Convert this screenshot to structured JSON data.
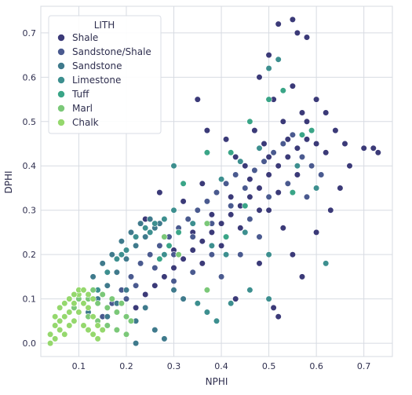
{
  "chart_data": {
    "type": "scatter",
    "xlabel": "NPHI",
    "ylabel": "DPHI",
    "xlim": [
      0.02,
      0.76
    ],
    "ylim": [
      -0.03,
      0.76
    ],
    "xticks": [
      "0.1",
      "0.2",
      "0.3",
      "0.4",
      "0.5",
      "0.6",
      "0.7"
    ],
    "xtick_values": [
      0.1,
      0.2,
      0.3,
      0.4,
      0.5,
      0.6,
      0.7
    ],
    "yticks": [
      "0.0",
      "0.1",
      "0.2",
      "0.3",
      "0.4",
      "0.5",
      "0.6",
      "0.7"
    ],
    "ytick_values": [
      0.0,
      0.1,
      0.2,
      0.3,
      0.4,
      0.5,
      0.6,
      0.7
    ],
    "grid": true,
    "legend": {
      "title": "LITH",
      "placement": "top-left"
    },
    "series": [
      {
        "name": "Shale",
        "color": "#3b3a78",
        "points": [
          [
            0.18,
            0.03
          ],
          [
            0.2,
            0.06
          ],
          [
            0.22,
            0.08
          ],
          [
            0.24,
            0.11
          ],
          [
            0.26,
            0.13
          ],
          [
            0.28,
            0.15
          ],
          [
            0.3,
            0.17
          ],
          [
            0.32,
            0.19
          ],
          [
            0.34,
            0.21
          ],
          [
            0.36,
            0.23
          ],
          [
            0.38,
            0.25
          ],
          [
            0.4,
            0.27
          ],
          [
            0.42,
            0.29
          ],
          [
            0.44,
            0.31
          ],
          [
            0.46,
            0.33
          ],
          [
            0.48,
            0.35
          ],
          [
            0.5,
            0.38
          ],
          [
            0.52,
            0.4
          ],
          [
            0.54,
            0.42
          ],
          [
            0.56,
            0.44
          ],
          [
            0.58,
            0.46
          ],
          [
            0.6,
            0.45
          ],
          [
            0.62,
            0.43
          ],
          [
            0.3,
            0.21
          ],
          [
            0.34,
            0.25
          ],
          [
            0.38,
            0.29
          ],
          [
            0.42,
            0.33
          ],
          [
            0.46,
            0.37
          ],
          [
            0.5,
            0.42
          ],
          [
            0.54,
            0.46
          ],
          [
            0.58,
            0.5
          ],
          [
            0.36,
            0.18
          ],
          [
            0.4,
            0.22
          ],
          [
            0.44,
            0.26
          ],
          [
            0.48,
            0.3
          ],
          [
            0.52,
            0.34
          ],
          [
            0.56,
            0.38
          ],
          [
            0.45,
            0.4
          ],
          [
            0.49,
            0.45
          ],
          [
            0.53,
            0.5
          ],
          [
            0.57,
            0.52
          ],
          [
            0.47,
            0.48
          ],
          [
            0.51,
            0.55
          ],
          [
            0.55,
            0.58
          ],
          [
            0.6,
            0.55
          ],
          [
            0.62,
            0.52
          ],
          [
            0.64,
            0.48
          ],
          [
            0.66,
            0.45
          ],
          [
            0.7,
            0.44
          ],
          [
            0.72,
            0.44
          ],
          [
            0.73,
            0.43
          ],
          [
            0.52,
            0.72
          ],
          [
            0.55,
            0.73
          ],
          [
            0.56,
            0.7
          ],
          [
            0.58,
            0.69
          ],
          [
            0.5,
            0.65
          ],
          [
            0.48,
            0.6
          ],
          [
            0.35,
            0.55
          ],
          [
            0.37,
            0.48
          ],
          [
            0.41,
            0.46
          ],
          [
            0.27,
            0.34
          ],
          [
            0.24,
            0.28
          ],
          [
            0.32,
            0.32
          ],
          [
            0.28,
            0.24
          ],
          [
            0.36,
            0.36
          ],
          [
            0.43,
            0.42
          ],
          [
            0.5,
            0.3
          ],
          [
            0.53,
            0.26
          ],
          [
            0.55,
            0.2
          ],
          [
            0.57,
            0.15
          ],
          [
            0.51,
            0.08
          ],
          [
            0.52,
            0.06
          ],
          [
            0.43,
            0.1
          ],
          [
            0.48,
            0.18
          ],
          [
            0.6,
            0.25
          ],
          [
            0.63,
            0.3
          ],
          [
            0.65,
            0.35
          ],
          [
            0.67,
            0.4
          ]
        ]
      },
      {
        "name": "Sandstone/Shale",
        "color": "#4a5a8f",
        "points": [
          [
            0.15,
            0.06
          ],
          [
            0.17,
            0.09
          ],
          [
            0.19,
            0.12
          ],
          [
            0.21,
            0.15
          ],
          [
            0.23,
            0.18
          ],
          [
            0.25,
            0.2
          ],
          [
            0.27,
            0.22
          ],
          [
            0.29,
            0.24
          ],
          [
            0.31,
            0.26
          ],
          [
            0.33,
            0.28
          ],
          [
            0.35,
            0.3
          ],
          [
            0.37,
            0.32
          ],
          [
            0.39,
            0.34
          ],
          [
            0.41,
            0.36
          ],
          [
            0.43,
            0.38
          ],
          [
            0.45,
            0.35
          ],
          [
            0.47,
            0.39
          ],
          [
            0.49,
            0.41
          ],
          [
            0.51,
            0.43
          ],
          [
            0.53,
            0.45
          ],
          [
            0.55,
            0.47
          ],
          [
            0.57,
            0.42
          ],
          [
            0.59,
            0.4
          ],
          [
            0.61,
            0.38
          ],
          [
            0.2,
            0.1
          ],
          [
            0.22,
            0.13
          ],
          [
            0.26,
            0.17
          ],
          [
            0.3,
            0.2
          ],
          [
            0.34,
            0.24
          ],
          [
            0.38,
            0.27
          ],
          [
            0.42,
            0.31
          ],
          [
            0.46,
            0.28
          ],
          [
            0.5,
            0.33
          ],
          [
            0.54,
            0.36
          ],
          [
            0.58,
            0.33
          ],
          [
            0.3,
            0.14
          ],
          [
            0.34,
            0.16
          ],
          [
            0.38,
            0.2
          ],
          [
            0.4,
            0.15
          ],
          [
            0.44,
            0.2
          ],
          [
            0.48,
            0.24
          ]
        ]
      },
      {
        "name": "Sandstone",
        "color": "#3f7a8c",
        "points": [
          [
            0.12,
            0.07
          ],
          [
            0.14,
            0.1
          ],
          [
            0.16,
            0.13
          ],
          [
            0.18,
            0.16
          ],
          [
            0.2,
            0.19
          ],
          [
            0.22,
            0.22
          ],
          [
            0.24,
            0.24
          ],
          [
            0.26,
            0.26
          ],
          [
            0.13,
            0.15
          ],
          [
            0.15,
            0.18
          ],
          [
            0.17,
            0.2
          ],
          [
            0.19,
            0.23
          ],
          [
            0.21,
            0.25
          ],
          [
            0.23,
            0.27
          ],
          [
            0.25,
            0.28
          ],
          [
            0.27,
            0.27
          ],
          [
            0.16,
            0.06
          ],
          [
            0.18,
            0.09
          ],
          [
            0.2,
            0.12
          ],
          [
            0.22,
            0.05
          ],
          [
            0.24,
            0.08
          ],
          [
            0.26,
            0.03
          ],
          [
            0.28,
            0.01
          ],
          [
            0.22,
            0.0
          ],
          [
            0.3,
            0.12
          ],
          [
            0.32,
            0.1
          ]
        ]
      },
      {
        "name": "Limestone",
        "color": "#3d8f8f",
        "points": [
          [
            0.14,
            0.12
          ],
          [
            0.16,
            0.16
          ],
          [
            0.18,
            0.19
          ],
          [
            0.2,
            0.21
          ],
          [
            0.22,
            0.24
          ],
          [
            0.24,
            0.26
          ],
          [
            0.26,
            0.27
          ],
          [
            0.28,
            0.28
          ],
          [
            0.3,
            0.3
          ],
          [
            0.4,
            0.37
          ],
          [
            0.44,
            0.41
          ],
          [
            0.48,
            0.44
          ],
          [
            0.5,
            0.62
          ],
          [
            0.52,
            0.64
          ],
          [
            0.3,
            0.4
          ],
          [
            0.34,
            0.27
          ],
          [
            0.38,
            0.22
          ],
          [
            0.56,
            0.4
          ],
          [
            0.6,
            0.35
          ],
          [
            0.62,
            0.18
          ],
          [
            0.5,
            0.2
          ],
          [
            0.46,
            0.12
          ],
          [
            0.42,
            0.09
          ],
          [
            0.35,
            0.09
          ],
          [
            0.37,
            0.07
          ],
          [
            0.39,
            0.05
          ],
          [
            0.5,
            0.1
          ],
          [
            0.45,
            0.25
          ],
          [
            0.41,
            0.2
          ],
          [
            0.28,
            0.2
          ],
          [
            0.19,
            0.2
          ],
          [
            0.25,
            0.25
          ]
        ]
      },
      {
        "name": "Tuff",
        "color": "#3aa587",
        "points": [
          [
            0.42,
            0.43
          ],
          [
            0.46,
            0.5
          ],
          [
            0.5,
            0.55
          ],
          [
            0.53,
            0.57
          ],
          [
            0.57,
            0.47
          ],
          [
            0.27,
            0.19
          ],
          [
            0.29,
            0.22
          ],
          [
            0.31,
            0.25
          ],
          [
            0.41,
            0.24
          ],
          [
            0.32,
            0.36
          ],
          [
            0.45,
            0.31
          ],
          [
            0.55,
            0.34
          ],
          [
            0.59,
            0.48
          ],
          [
            0.37,
            0.43
          ]
        ]
      },
      {
        "name": "Marl",
        "color": "#7bc878",
        "points": [
          [
            0.09,
            0.08
          ],
          [
            0.1,
            0.1
          ],
          [
            0.11,
            0.12
          ],
          [
            0.12,
            0.1
          ],
          [
            0.13,
            0.12
          ],
          [
            0.14,
            0.09
          ],
          [
            0.15,
            0.11
          ],
          [
            0.16,
            0.08
          ],
          [
            0.17,
            0.1
          ],
          [
            0.18,
            0.07
          ],
          [
            0.19,
            0.09
          ],
          [
            0.2,
            0.06
          ],
          [
            0.21,
            0.05
          ],
          [
            0.12,
            0.06
          ],
          [
            0.14,
            0.05
          ],
          [
            0.16,
            0.04
          ],
          [
            0.18,
            0.03
          ],
          [
            0.2,
            0.02
          ],
          [
            0.37,
            0.12
          ],
          [
            0.28,
            0.24
          ],
          [
            0.31,
            0.2
          ],
          [
            0.37,
            0.27
          ]
        ]
      },
      {
        "name": "Chalk",
        "color": "#95d86d",
        "points": [
          [
            0.04,
            0.0
          ],
          [
            0.04,
            0.02
          ],
          [
            0.05,
            0.04
          ],
          [
            0.05,
            0.01
          ],
          [
            0.06,
            0.03
          ],
          [
            0.06,
            0.05
          ],
          [
            0.07,
            0.06
          ],
          [
            0.07,
            0.02
          ],
          [
            0.08,
            0.07
          ],
          [
            0.08,
            0.04
          ],
          [
            0.09,
            0.09
          ],
          [
            0.09,
            0.05
          ],
          [
            0.1,
            0.11
          ],
          [
            0.1,
            0.07
          ],
          [
            0.11,
            0.09
          ],
          [
            0.11,
            0.04
          ],
          [
            0.12,
            0.08
          ],
          [
            0.12,
            0.03
          ],
          [
            0.13,
            0.06
          ],
          [
            0.13,
            0.02
          ],
          [
            0.14,
            0.04
          ],
          [
            0.14,
            0.01
          ],
          [
            0.15,
            0.03
          ],
          [
            0.08,
            0.1
          ],
          [
            0.09,
            0.11
          ],
          [
            0.1,
            0.12
          ],
          [
            0.06,
            0.08
          ],
          [
            0.05,
            0.06
          ],
          [
            0.07,
            0.09
          ],
          [
            0.11,
            0.12
          ],
          [
            0.12,
            0.11
          ],
          [
            0.13,
            0.1
          ]
        ]
      }
    ]
  }
}
